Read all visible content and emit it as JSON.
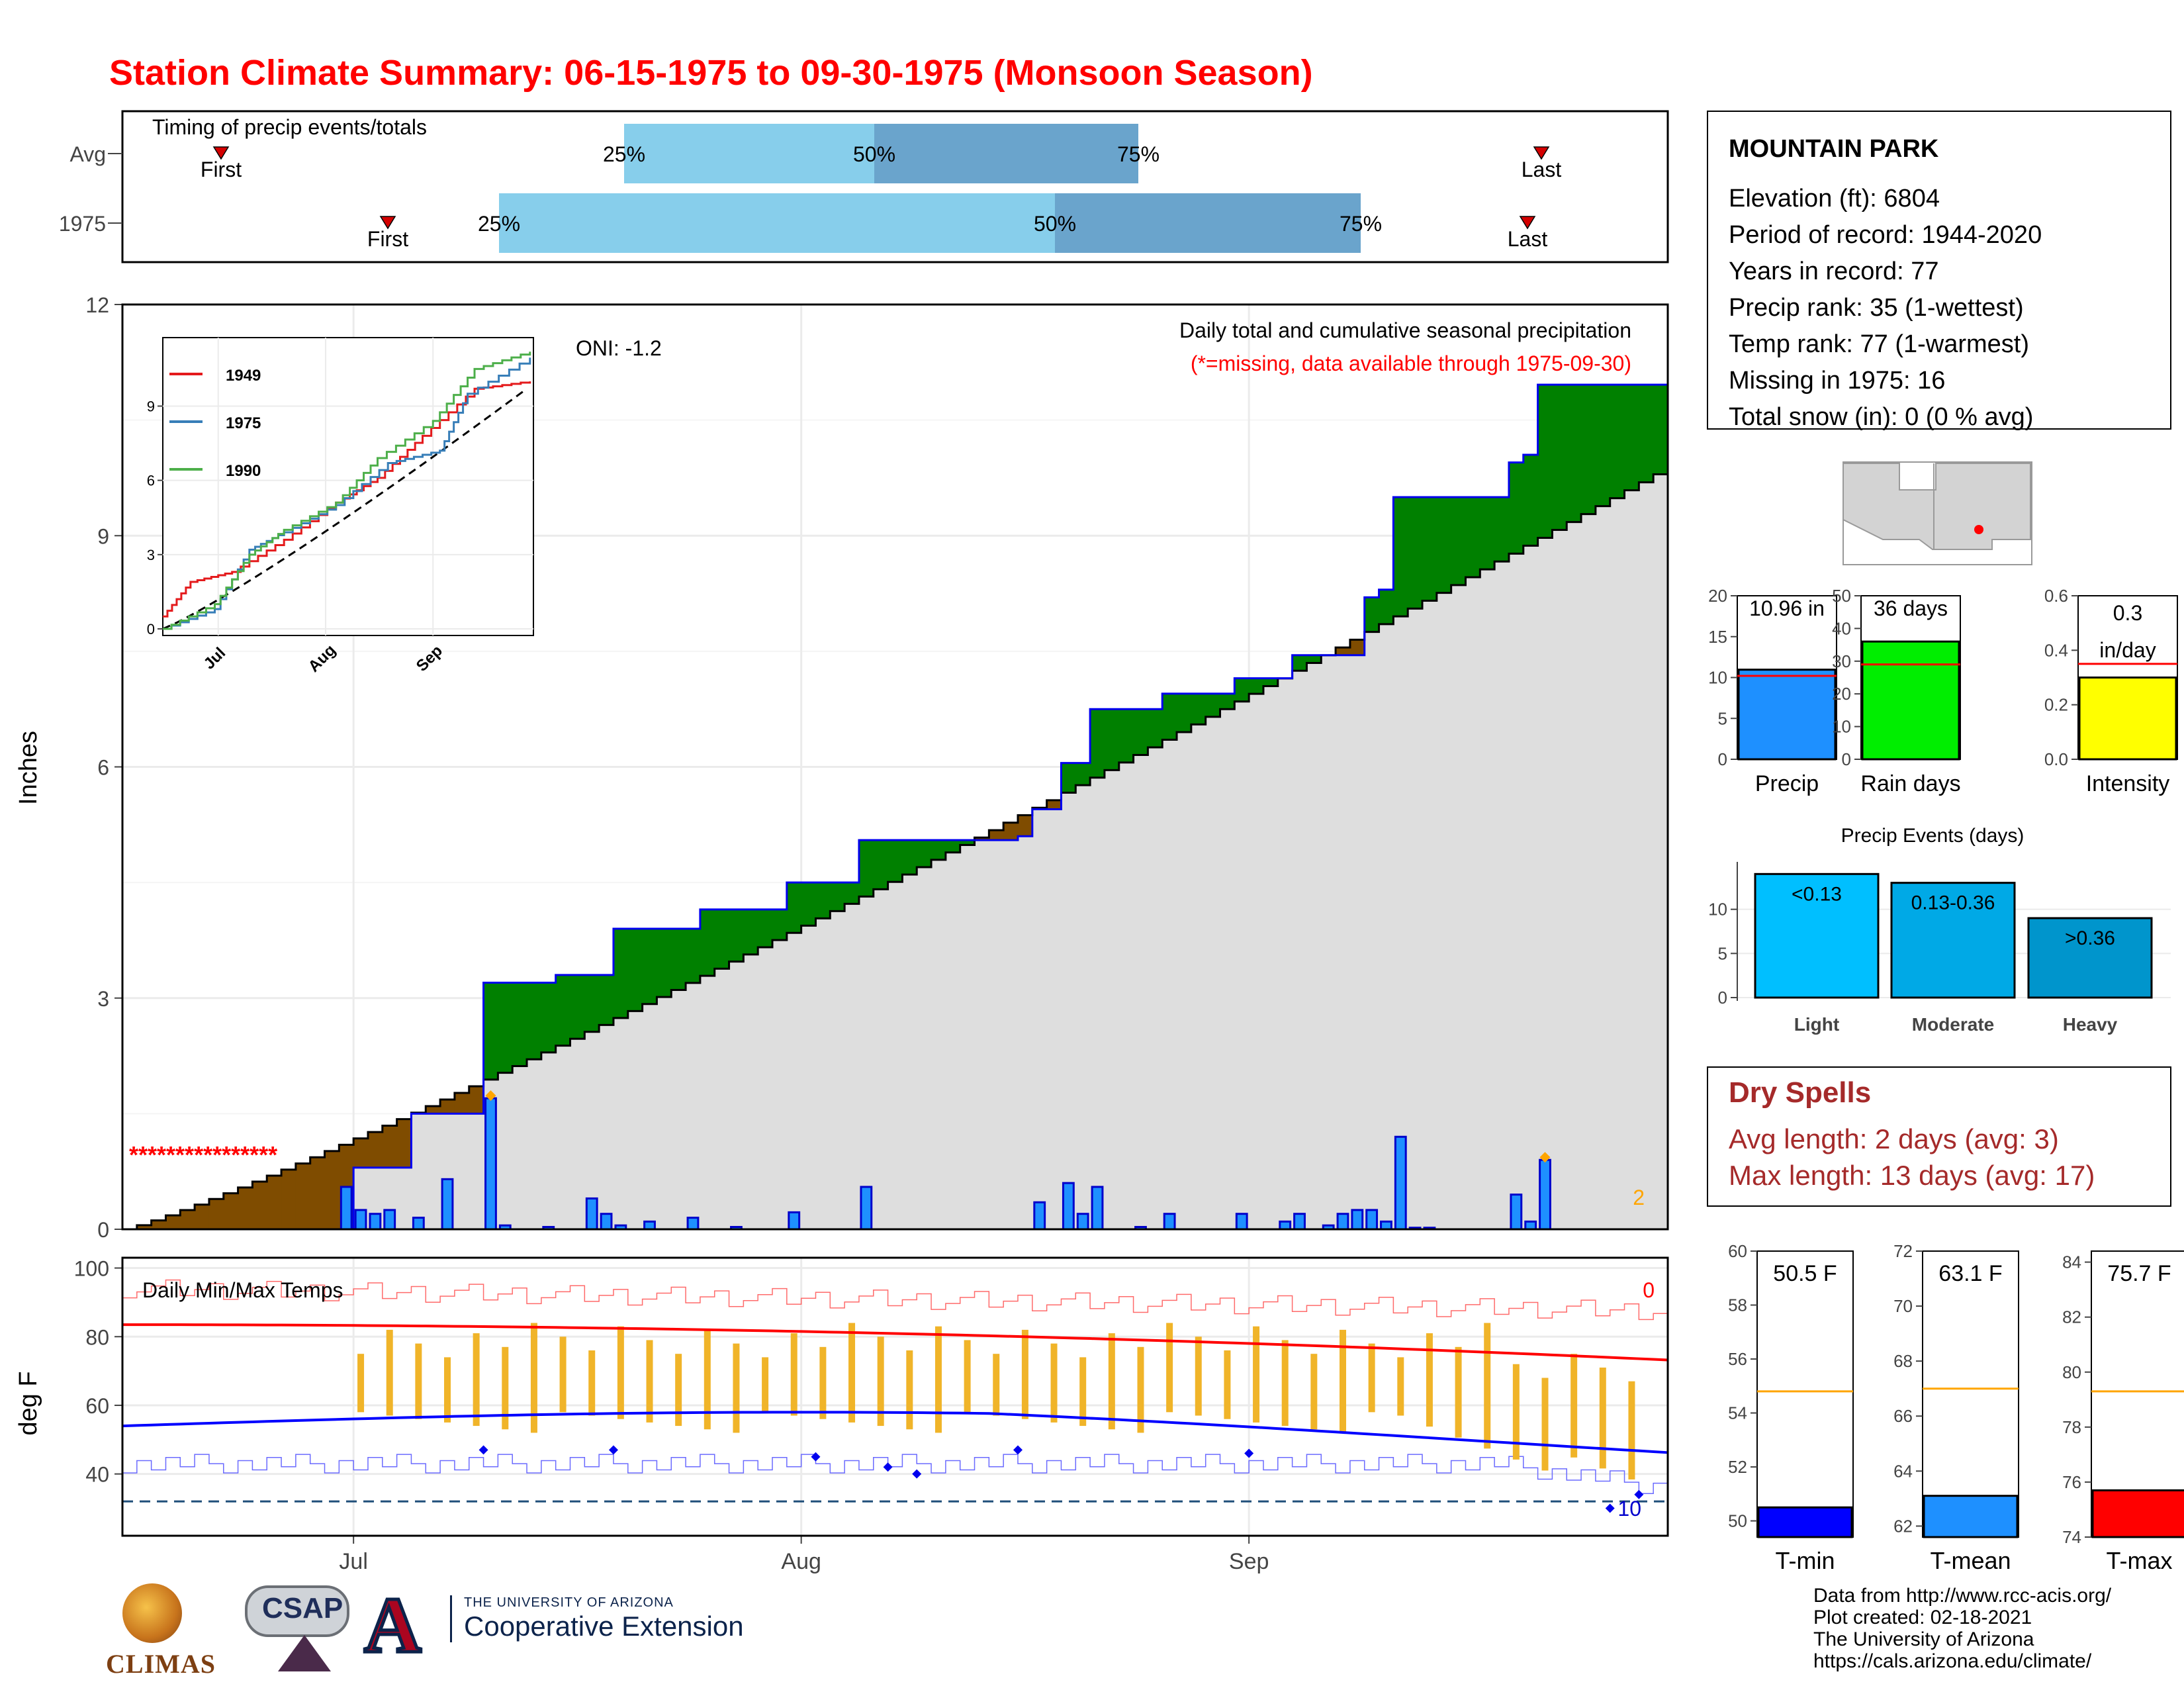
{
  "title": "Station Climate Summary: 06-15-1975 to 09-30-1975 (Monsoon Season)",
  "timing": {
    "title": "Timing of precip events/totals",
    "rows": [
      {
        "label": "Avg",
        "first_doy": 5,
        "last_doy": 100,
        "p25": 34,
        "p50": 52,
        "p75": 71
      },
      {
        "label": "1975",
        "first_doy": 17,
        "last_doy": 99,
        "p25": 25,
        "p50": 65,
        "p75": 87
      }
    ],
    "first_label": "First",
    "last_label": "Last",
    "pct_labels": [
      "25%",
      "50%",
      "75%"
    ]
  },
  "station": {
    "name": "MOUNTAIN PARK",
    "lines": [
      "Elevation (ft): 6804",
      "Period of record: 1944-2020",
      "Years in record: 77",
      "Precip rank: 35 (1-wettest)",
      "Temp rank: 77 (1-warmest)",
      "Missing in 1975: 16",
      "Total snow (in): 0 (0 % avg)"
    ]
  },
  "main_chart": {
    "y_axis_label": "Inches",
    "yticks": [
      0,
      3,
      6,
      9,
      12
    ],
    "ymax": 12,
    "xticks": [
      "Jul",
      "Aug",
      "Sep"
    ],
    "oni": "ONI: -1.2",
    "legend_title": "Daily total and cumulative seasonal precipitation",
    "legend_sub": "(*=missing, data available through 1975-09-30)",
    "missing_marks": "****************",
    "corner_count": "2"
  },
  "inset": {
    "legend": [
      "1949",
      "1975",
      "1990"
    ],
    "yticks": [
      0,
      3,
      6,
      9
    ],
    "xticks": [
      "Jul",
      "Aug",
      "Sep"
    ]
  },
  "temp_chart": {
    "y_axis_label": "deg F",
    "title": "Daily Min/Max Temps",
    "yticks": [
      40,
      60,
      80,
      100
    ],
    "corner_top": "0",
    "corner_bottom": "10"
  },
  "precip_summary": [
    {
      "label": "Precip",
      "value_text": "10.96 in",
      "value": 10.96,
      "avg": 10.2,
      "ymax": 20,
      "ticks": [
        0,
        5,
        10,
        15,
        20
      ],
      "color": "#1e90ff"
    },
    {
      "label": "Rain days",
      "value_text": "36 days",
      "value": 36,
      "avg": 29,
      "ymax": 50,
      "ticks": [
        0,
        10,
        20,
        30,
        40,
        50
      ],
      "color": "#00ee00"
    },
    {
      "label": "Intensity",
      "value_text": "0.3",
      "value_text2": "in/day",
      "value": 0.3,
      "avg": 0.35,
      "ymax": 0.6,
      "ticks": [
        "0.0",
        "0.2",
        "0.4",
        "0.6"
      ],
      "color": "#ffff00"
    }
  ],
  "precip_events": {
    "title": "Precip Events (days)",
    "ticks": [
      0,
      5,
      10
    ],
    "bars": [
      {
        "label": "Light",
        "range": "<0.13",
        "value": 14,
        "color": "#00bfff"
      },
      {
        "label": "Moderate",
        "range": "0.13-0.36",
        "value": 13,
        "color": "#00a9e6"
      },
      {
        "label": "Heavy",
        "range": ">0.36",
        "value": 9,
        "color": "#0095cc"
      }
    ]
  },
  "dry_spells": {
    "title": "Dry Spells",
    "lines": [
      "Avg length: 2 days (avg: 3)",
      "Max length: 13 days (avg: 17)"
    ]
  },
  "temp_summary": [
    {
      "label": "T-min",
      "value_text": "50.5 F",
      "value": 50.5,
      "avg": 54.8,
      "ymin": 49.4,
      "ymax": 60,
      "ticks": [
        50,
        52,
        54,
        56,
        58,
        60
      ],
      "color": "#0000ff"
    },
    {
      "label": "T-mean",
      "value_text": "63.1 F",
      "value": 63.1,
      "avg": 67.0,
      "ymin": 61.6,
      "ymax": 72,
      "ticks": [
        62,
        64,
        66,
        68,
        70,
        72
      ],
      "color": "#1e90ff"
    },
    {
      "label": "T-max",
      "value_text": "75.7 F",
      "value": 75.7,
      "avg": 79.3,
      "ymin": 74,
      "ymax": 84.4,
      "ticks": [
        74,
        76,
        78,
        80,
        82,
        84
      ],
      "color": "#ff0000"
    }
  ],
  "footer": [
    "Data from http://www.rcc-acis.org/",
    "Plot created: 02-18-2021",
    "The University of Arizona",
    "https://cals.arizona.edu/climate/"
  ],
  "logos": {
    "climas": "CLIMAS",
    "csap": "CSAP",
    "ua_small": "THE UNIVERSITY OF ARIZONA",
    "ua_big": "Cooperative Extension"
  },
  "chart_data": [
    {
      "type": "area",
      "title": "Daily total and cumulative seasonal precipitation",
      "ylabel": "Inches",
      "xlabel": "",
      "ylim": [
        0,
        12
      ],
      "x_start": "1975-06-15",
      "x_end": "1975-09-30",
      "missing_days_text": "****************",
      "daily_precip": [
        {
          "x": "1975-06-30",
          "y": 0.55
        },
        {
          "x": "1975-07-01",
          "y": 0.25
        },
        {
          "x": "1975-07-02",
          "y": 0.2
        },
        {
          "x": "1975-07-03",
          "y": 0.25
        },
        {
          "x": "1975-07-05",
          "y": 0.15
        },
        {
          "x": "1975-07-07",
          "y": 0.65
        },
        {
          "x": "1975-07-10",
          "y": 1.7
        },
        {
          "x": "1975-07-11",
          "y": 0.05
        },
        {
          "x": "1975-07-14",
          "y": 0.03
        },
        {
          "x": "1975-07-17",
          "y": 0.4
        },
        {
          "x": "1975-07-18",
          "y": 0.2
        },
        {
          "x": "1975-07-19",
          "y": 0.05
        },
        {
          "x": "1975-07-21",
          "y": 0.1
        },
        {
          "x": "1975-07-24",
          "y": 0.15
        },
        {
          "x": "1975-07-27",
          "y": 0.03
        },
        {
          "x": "1975-07-31",
          "y": 0.22
        },
        {
          "x": "1975-08-05",
          "y": 0.55
        },
        {
          "x": "1975-08-17",
          "y": 0.35
        },
        {
          "x": "1975-08-19",
          "y": 0.6
        },
        {
          "x": "1975-08-20",
          "y": 0.2
        },
        {
          "x": "1975-08-21",
          "y": 0.55
        },
        {
          "x": "1975-08-24",
          "y": 0.03
        },
        {
          "x": "1975-08-26",
          "y": 0.2
        },
        {
          "x": "1975-08-31",
          "y": 0.2
        },
        {
          "x": "1975-09-03",
          "y": 0.1
        },
        {
          "x": "1975-09-04",
          "y": 0.2
        },
        {
          "x": "1975-09-06",
          "y": 0.05
        },
        {
          "x": "1975-09-07",
          "y": 0.2
        },
        {
          "x": "1975-09-08",
          "y": 0.25
        },
        {
          "x": "1975-09-09",
          "y": 0.25
        },
        {
          "x": "1975-09-10",
          "y": 0.1
        },
        {
          "x": "1975-09-11",
          "y": 1.2
        },
        {
          "x": "1975-09-12",
          "y": 0.02
        },
        {
          "x": "1975-09-13",
          "y": 0.02
        },
        {
          "x": "1975-09-19",
          "y": 0.45
        },
        {
          "x": "1975-09-20",
          "y": 0.1
        },
        {
          "x": "1975-09-21",
          "y": 0.9
        }
      ],
      "cumulative_1975_points": [
        {
          "x": "1975-06-15",
          "y": 0
        },
        {
          "x": "1975-06-30",
          "y": 0.0
        },
        {
          "x": "1975-07-01",
          "y": 0.8
        },
        {
          "x": "1975-07-05",
          "y": 1.5
        },
        {
          "x": "1975-07-10",
          "y": 3.2
        },
        {
          "x": "1975-07-15",
          "y": 3.3
        },
        {
          "x": "1975-07-19",
          "y": 3.9
        },
        {
          "x": "1975-07-25",
          "y": 4.15
        },
        {
          "x": "1975-07-31",
          "y": 4.5
        },
        {
          "x": "1975-08-04",
          "y": 4.5
        },
        {
          "x": "1975-08-05",
          "y": 5.05
        },
        {
          "x": "1975-08-16",
          "y": 5.1
        },
        {
          "x": "1975-08-17",
          "y": 5.45
        },
        {
          "x": "1975-08-19",
          "y": 6.05
        },
        {
          "x": "1975-08-21",
          "y": 6.75
        },
        {
          "x": "1975-08-26",
          "y": 6.95
        },
        {
          "x": "1975-08-31",
          "y": 7.15
        },
        {
          "x": "1975-09-04",
          "y": 7.45
        },
        {
          "x": "1975-09-09",
          "y": 8.2
        },
        {
          "x": "1975-09-10",
          "y": 8.3
        },
        {
          "x": "1975-09-11",
          "y": 9.5
        },
        {
          "x": "1975-09-19",
          "y": 9.95
        },
        {
          "x": "1975-09-20",
          "y": 10.05
        },
        {
          "x": "1975-09-21",
          "y": 10.96
        },
        {
          "x": "1975-09-30",
          "y": 10.96
        }
      ],
      "cumulative_average_end": 9.9
    },
    {
      "type": "line",
      "title": "",
      "series": [
        {
          "name": "1949",
          "points": [
            [
              0,
              0.5
            ],
            [
              8,
              1.9
            ],
            [
              20,
              2.3
            ],
            [
              35,
              3.6
            ],
            [
              50,
              5.1
            ],
            [
              62,
              6.1
            ],
            [
              75,
              7.8
            ],
            [
              90,
              9.7
            ],
            [
              106,
              10.0
            ]
          ]
        },
        {
          "name": "1975",
          "points": [
            [
              0,
              0
            ],
            [
              15,
              0.8
            ],
            [
              25,
              3.2
            ],
            [
              35,
              3.9
            ],
            [
              50,
              5.0
            ],
            [
              65,
              6.7
            ],
            [
              80,
              7.2
            ],
            [
              88,
              9.5
            ],
            [
              106,
              10.96
            ]
          ]
        },
        {
          "name": "1990",
          "points": [
            [
              0,
              0
            ],
            [
              15,
              1.0
            ],
            [
              25,
              3.0
            ],
            [
              35,
              4.0
            ],
            [
              50,
              5.1
            ],
            [
              62,
              6.9
            ],
            [
              78,
              8.4
            ],
            [
              90,
              10.5
            ],
            [
              106,
              11.2
            ]
          ]
        }
      ],
      "ylim": [
        0,
        11.5
      ]
    }
  ]
}
